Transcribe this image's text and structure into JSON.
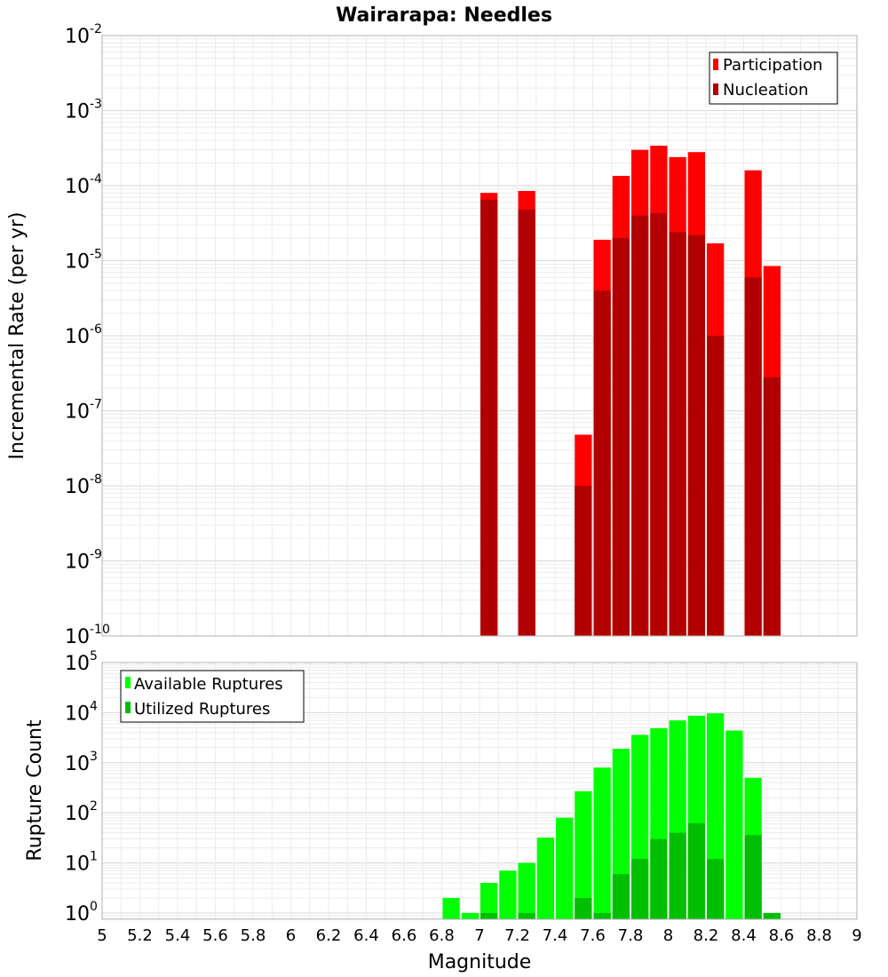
{
  "chart_data": [
    {
      "type": "bar",
      "title": "Wairarapa: Needles",
      "xlabel": "",
      "ylabel": "Incremental Rate (per yr)",
      "xlim": [
        5,
        9
      ],
      "ylim": [
        1e-10,
        0.01
      ],
      "yscale": "log",
      "grid": true,
      "legend_position": "top-right",
      "x": [
        7.05,
        7.25,
        7.55,
        7.65,
        7.75,
        7.85,
        7.95,
        8.05,
        8.15,
        8.25,
        8.45,
        8.55
      ],
      "series": [
        {
          "name": "Participation",
          "color": "#ff0000",
          "values": [
            8e-05,
            8.5e-05,
            4.8e-08,
            1.9e-05,
            0.000135,
            0.0003,
            0.00034,
            0.00024,
            0.00028,
            1.7e-05,
            0.00016,
            8.5e-06
          ]
        },
        {
          "name": "Nucleation",
          "color": "#b20000",
          "values": [
            6.5e-05,
            4.8e-05,
            1e-08,
            4e-06,
            2e-05,
            4e-05,
            4.3e-05,
            2.4e-05,
            2.2e-05,
            1e-06,
            6e-06,
            2.8e-07
          ]
        }
      ]
    },
    {
      "type": "bar",
      "title": "",
      "xlabel": "Magnitude",
      "ylabel": "Rupture Count",
      "xlim": [
        5,
        9
      ],
      "ylim": [
        0.75,
        100000
      ],
      "yscale": "log",
      "grid": true,
      "legend_position": "top-left",
      "x_ticks": [
        "5",
        "5.2",
        "5.4",
        "5.6",
        "5.8",
        "6",
        "6.2",
        "6.4",
        "6.6",
        "6.8",
        "7",
        "7.2",
        "7.4",
        "7.6",
        "7.8",
        "8",
        "8.2",
        "8.4",
        "8.6",
        "8.8",
        "9"
      ],
      "x": [
        6.85,
        6.95,
        7.05,
        7.15,
        7.25,
        7.35,
        7.45,
        7.55,
        7.65,
        7.75,
        7.85,
        7.95,
        8.05,
        8.15,
        8.25,
        8.35,
        8.45,
        8.55
      ],
      "series": [
        {
          "name": "Available Ruptures",
          "color": "#00ff00",
          "values": [
            2,
            1,
            4,
            7,
            10,
            32,
            80,
            270,
            800,
            1900,
            3600,
            4900,
            7000,
            8700,
            9700,
            4400,
            500,
            1
          ]
        },
        {
          "name": "Utilized Ruptures",
          "color": "#00bf00",
          "values": [
            null,
            null,
            1,
            null,
            1,
            null,
            null,
            2,
            1,
            6,
            12,
            30,
            40,
            62,
            12,
            null,
            36,
            1
          ]
        }
      ]
    }
  ]
}
